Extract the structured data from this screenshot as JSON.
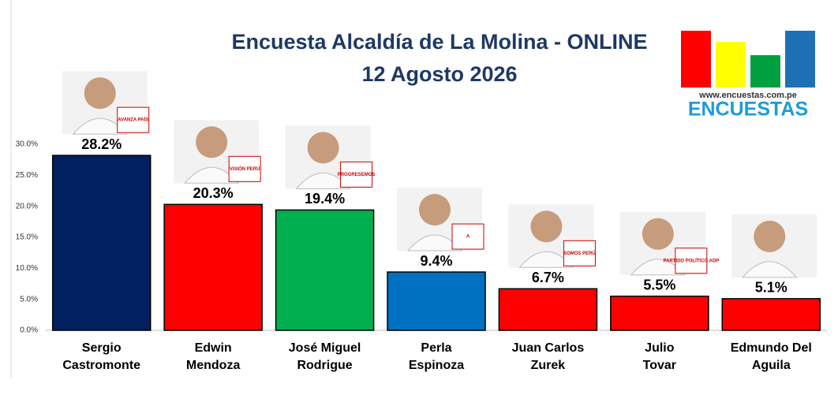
{
  "chart_data": {
    "type": "bar",
    "title": "Encuesta Alcaldía de La Molina - ONLINE",
    "subtitle": "12 Agosto 2026",
    "categories": [
      "Sergio\nCastromonte",
      "Edwin\nMendoza",
      "José Miguel\nRodrigue",
      "Perla\nEspinoza",
      "Juan Carlos\nZurek",
      "Julio\nTovar",
      "Edmundo Del\nAguila"
    ],
    "values": [
      28.2,
      20.3,
      19.4,
      9.4,
      6.7,
      5.5,
      5.1
    ],
    "value_labels": [
      "28.2%",
      "20.3%",
      "19.4%",
      "9.4%",
      "6.7%",
      "5.5%",
      "5.1%"
    ],
    "colors": [
      "#002060",
      "#ff0000",
      "#00b050",
      "#0070c0",
      "#ff0000",
      "#ff0000",
      "#ff0000"
    ],
    "party_labels": [
      "AVANZA PAÍS",
      "VISIÓN PERÚ",
      "PROGRESEMOS",
      "A",
      "SOMOS PERÚ",
      "PARTIDO POLÍTICO ADP",
      null
    ],
    "ylim": [
      0,
      30
    ],
    "yticks": [
      {
        "value": 0,
        "label": "0.0%"
      },
      {
        "value": 5,
        "label": "5.0%"
      },
      {
        "value": 10,
        "label": "10.0%"
      },
      {
        "value": 15,
        "label": "15.0%"
      },
      {
        "value": 20,
        "label": "20.0%"
      },
      {
        "value": 25,
        "label": "25.0%"
      },
      {
        "value": 30,
        "label": "30.0%"
      }
    ],
    "grid": false
  },
  "logo": {
    "url": "www.encuestas.com.pe",
    "name": "ENCUESTAS"
  }
}
